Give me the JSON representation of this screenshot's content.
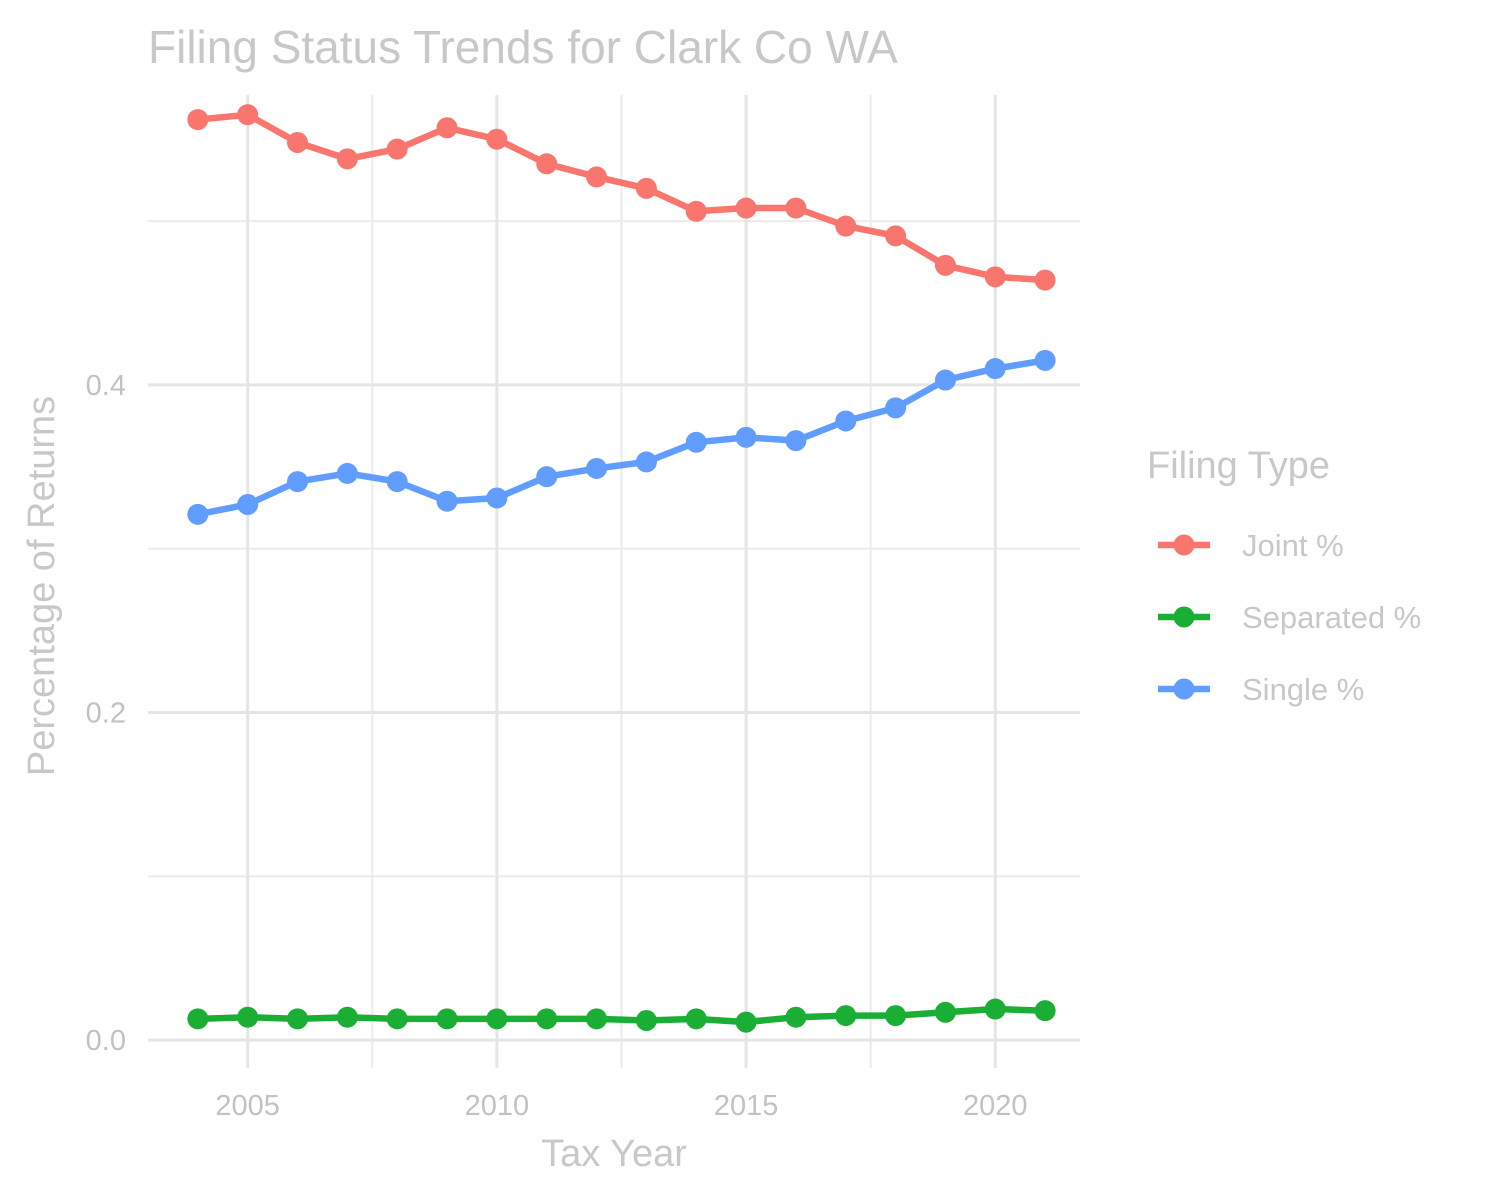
{
  "chart_data": {
    "type": "line",
    "title": "Filing Status Trends for Clark Co WA",
    "xlabel": "Tax Year",
    "ylabel": "Percentage of Returns",
    "xlim": [
      2003.0,
      2021.7
    ],
    "ylim": [
      -0.017,
      0.577
    ],
    "x_ticks": [
      2005,
      2010,
      2015,
      2020
    ],
    "x_tick_labels": [
      "2005",
      "2010",
      "2015",
      "2020"
    ],
    "x_minor_ticks": [
      2007.5,
      2012.5,
      2017.5
    ],
    "y_ticks": [
      0.0,
      0.2,
      0.4
    ],
    "y_tick_labels": [
      "0.0",
      "0.2",
      "0.4"
    ],
    "y_minor_ticks": [
      0.1,
      0.3,
      0.5
    ],
    "grid": true,
    "x": [
      2004,
      2005,
      2006,
      2007,
      2008,
      2009,
      2010,
      2011,
      2012,
      2013,
      2014,
      2015,
      2016,
      2017,
      2018,
      2019,
      2020,
      2021
    ],
    "series": [
      {
        "name": "Joint %",
        "color": "#F8766D",
        "values": [
          0.562,
          0.565,
          0.548,
          0.538,
          0.544,
          0.557,
          0.55,
          0.535,
          0.527,
          0.52,
          0.506,
          0.508,
          0.508,
          0.497,
          0.491,
          0.473,
          0.466,
          0.464
        ]
      },
      {
        "name": "Separated %",
        "color": "#1AAF34",
        "values": [
          0.013,
          0.014,
          0.013,
          0.014,
          0.013,
          0.013,
          0.013,
          0.013,
          0.013,
          0.012,
          0.013,
          0.011,
          0.014,
          0.015,
          0.015,
          0.017,
          0.019,
          0.018
        ]
      },
      {
        "name": "Single %",
        "color": "#619CFF",
        "values": [
          0.321,
          0.327,
          0.341,
          0.346,
          0.341,
          0.329,
          0.331,
          0.344,
          0.349,
          0.353,
          0.365,
          0.368,
          0.366,
          0.378,
          0.386,
          0.403,
          0.41,
          0.415
        ]
      }
    ],
    "legend": {
      "title": "Filing Type",
      "placement": "right",
      "items": [
        "Joint %",
        "Separated %",
        "Single %"
      ]
    }
  }
}
